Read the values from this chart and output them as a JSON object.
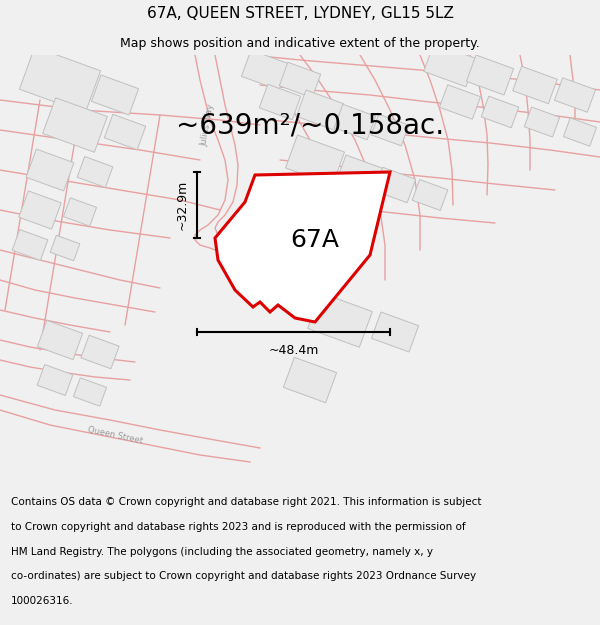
{
  "title": "67A, QUEEN STREET, LYDNEY, GL15 5LZ",
  "subtitle": "Map shows position and indicative extent of the property.",
  "area_label": "~639m²/~0.158ac.",
  "plot_label": "67A",
  "width_label": "~48.4m",
  "height_label": "~32.9m",
  "footer_lines": [
    "Contains OS data © Crown copyright and database right 2021. This information is subject",
    "to Crown copyright and database rights 2023 and is reproduced with the permission of",
    "HM Land Registry. The polygons (including the associated geometry, namely x, y",
    "co-ordinates) are subject to Crown copyright and database rights 2023 Ordnance Survey",
    "100026316."
  ],
  "bg_color": "#f0f0f0",
  "map_bg": "#ffffff",
  "road_color": "#e8a0a0",
  "building_fill": "#e8e8e8",
  "building_edge": "#c0c0c0",
  "plot_color": "#dd0000",
  "title_fontsize": 11,
  "subtitle_fontsize": 9,
  "area_fontsize": 20,
  "plot_label_fontsize": 18,
  "dim_fontsize": 9,
  "footer_fontsize": 7.5
}
